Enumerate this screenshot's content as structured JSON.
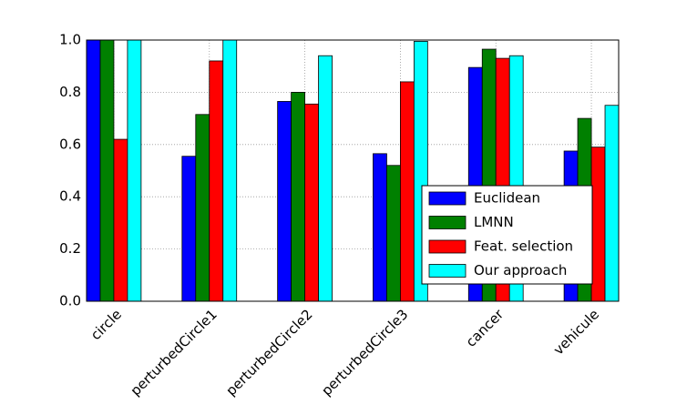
{
  "chart_data": {
    "type": "bar",
    "categories": [
      "circle",
      "perturbedCircle1",
      "perturbedCircle2",
      "perturbedCircle3",
      "cancer",
      "vehicule"
    ],
    "series": [
      {
        "name": "Euclidean",
        "color": "#0000ff",
        "values": [
          1.0,
          0.555,
          0.765,
          0.565,
          0.895,
          0.575
        ]
      },
      {
        "name": "LMNN",
        "color": "#008000",
        "values": [
          1.0,
          0.715,
          0.8,
          0.52,
          0.965,
          0.7
        ]
      },
      {
        "name": "Feat. selection",
        "color": "#ff0000",
        "values": [
          0.62,
          0.92,
          0.755,
          0.84,
          0.93,
          0.59
        ]
      },
      {
        "name": "Our approach",
        "color": "#00ffff",
        "values": [
          1.0,
          1.0,
          0.94,
          0.995,
          0.94,
          0.75
        ]
      }
    ],
    "ylim": [
      0,
      1
    ],
    "yticks": [
      {
        "value": 0,
        "label": "0.0"
      },
      {
        "value": 0.2,
        "label": "0.2"
      },
      {
        "value": 0.4,
        "label": "0.4"
      },
      {
        "value": 0.6,
        "label": "0.6"
      },
      {
        "value": 0.8,
        "label": "0.8"
      },
      {
        "value": 1,
        "label": "1.0"
      }
    ],
    "grid": true,
    "legend": "lower right"
  }
}
